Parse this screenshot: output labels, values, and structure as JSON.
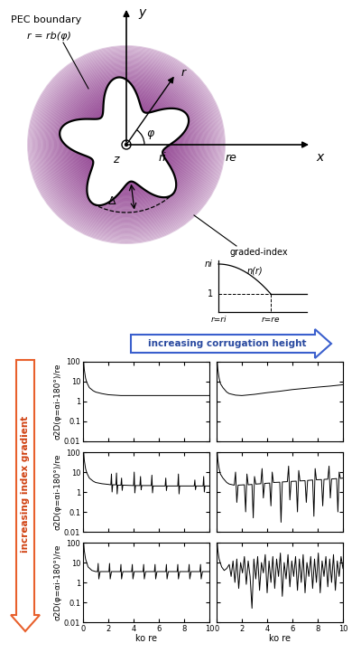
{
  "diagram": {
    "pec_label": "PEC boundary",
    "boundary_eq": "r = rb(φ)",
    "axis_y": "y",
    "axis_x": "x",
    "axis_z": "z",
    "radius": "r",
    "angle": "φ",
    "inner_radius": "ri",
    "outer_radius": "re",
    "corrugation": "Δ",
    "profile": {
      "title": "graded-index",
      "n_inner": "ni",
      "curve": "n(r)",
      "n_outer": "1",
      "x_inner": "r=ri",
      "x_outer": "r=re"
    }
  },
  "arrows": {
    "horizontal": "increasing corrugation height",
    "vertical": "increasing index gradient"
  },
  "chart_data": [
    {
      "type": "line",
      "color": "#000000",
      "log": "y",
      "tick_labels": "y",
      "ylabel": "σ2D(φ=αi-180°)/re",
      "xlim": [
        0,
        10
      ],
      "ylim": [
        0.01,
        100
      ],
      "xticks": [
        0,
        2,
        4,
        6,
        8,
        10
      ],
      "yticks": [
        0.01,
        0.1,
        1,
        10,
        100
      ],
      "x": [
        0.05,
        0.1,
        0.2,
        0.3,
        0.5,
        0.8,
        1,
        1.5,
        2,
        3,
        4,
        5,
        6,
        7,
        8,
        9,
        10
      ],
      "values": [
        100,
        40,
        15,
        9,
        5,
        3.5,
        3,
        2.5,
        2.2,
        2,
        2,
        2,
        2,
        2,
        2,
        2,
        2
      ]
    },
    {
      "type": "line",
      "color": "#000000",
      "log": "y",
      "tick_labels": false,
      "xlim": [
        0,
        10
      ],
      "ylim": [
        0.01,
        100
      ],
      "xticks": [
        0,
        2,
        4,
        6,
        8,
        10
      ],
      "yticks": [
        0.01,
        0.1,
        1,
        10,
        100
      ],
      "x": [
        0.05,
        0.1,
        0.2,
        0.3,
        0.5,
        0.8,
        1,
        1.5,
        2,
        3,
        4,
        5,
        6,
        7,
        8,
        9,
        10
      ],
      "values": [
        100,
        40,
        15,
        8,
        5,
        3,
        2.5,
        2.1,
        2,
        2.3,
        2.8,
        3.3,
        4,
        4.6,
        5.3,
        6,
        7
      ]
    },
    {
      "type": "line",
      "color": "#000000",
      "log": "y",
      "tick_labels": "y",
      "ylabel": "σ2D(φ=αi-180°)/re",
      "xlim": [
        0,
        10
      ],
      "ylim": [
        0.01,
        100
      ],
      "xticks": [
        0,
        2,
        4,
        6,
        8,
        10
      ],
      "yticks": [
        0.01,
        0.1,
        1,
        10,
        100
      ],
      "x": [
        0.05,
        0.1,
        0.2,
        0.3,
        0.5,
        0.8,
        1,
        1.5,
        2,
        2.2,
        2.25,
        2.3,
        2.35,
        2.6,
        2.65,
        2.7,
        2.75,
        3,
        3.05,
        3.1,
        3.15,
        4,
        4.05,
        4.1,
        4.15,
        4.5,
        4.55,
        4.6,
        4.65,
        5.4,
        5.45,
        5.5,
        5.55,
        6.5,
        6.55,
        6.6,
        6.65,
        7.5,
        7.55,
        7.6,
        7.65,
        8.8,
        8.85,
        8.9,
        8.95,
        9.5,
        9.55,
        9.6,
        9.65,
        10
      ],
      "values": [
        100,
        40,
        15,
        9,
        5,
        3.5,
        3,
        2.6,
        2.4,
        2.3,
        8,
        1,
        2.3,
        2.3,
        9,
        0.8,
        2.2,
        2.2,
        5,
        1.2,
        2.2,
        2.1,
        10,
        0.9,
        2.1,
        2.1,
        6,
        1.3,
        2.1,
        2.1,
        7,
        0.9,
        2,
        2,
        5,
        1.2,
        2,
        2,
        8,
        0.8,
        2,
        2,
        4,
        1.3,
        2,
        2,
        6,
        1,
        2,
        2
      ]
    },
    {
      "type": "line",
      "color": "#000000",
      "log": "y",
      "tick_labels": false,
      "xlim": [
        0,
        10
      ],
      "ylim": [
        0.01,
        100
      ],
      "xticks": [
        0,
        2,
        4,
        6,
        8,
        10
      ],
      "yticks": [
        0.01,
        0.1,
        1,
        10,
        100
      ],
      "x": [
        0.05,
        0.1,
        0.2,
        0.3,
        0.5,
        0.8,
        1,
        1.4,
        1.5,
        1.6,
        1.7,
        2.2,
        2.3,
        2.4,
        2.5,
        2.8,
        2.9,
        3,
        3.1,
        3.5,
        3.6,
        3.7,
        3.8,
        4.2,
        4.3,
        4.4,
        4.5,
        5,
        5.1,
        5.2,
        5.6,
        5.7,
        5.8,
        5.9,
        6.3,
        6.4,
        6.5,
        6.6,
        7,
        7.1,
        7.2,
        7.6,
        7.7,
        7.8,
        7.9,
        8.3,
        8.4,
        8.5,
        8.8,
        8.9,
        9,
        9.1,
        9.5,
        9.6,
        9.7,
        9.8,
        10
      ],
      "values": [
        100,
        40,
        15,
        8,
        5,
        3,
        2.5,
        2.2,
        10,
        0.3,
        2.2,
        2.3,
        0.1,
        8,
        2.3,
        2.4,
        0.05,
        6,
        2.5,
        2.6,
        15,
        0.5,
        2.7,
        2.8,
        0.2,
        10,
        3,
        3.1,
        0.03,
        3.2,
        3.3,
        20,
        0.4,
        3.4,
        3.5,
        0.1,
        12,
        3.6,
        3.7,
        0.3,
        3.8,
        4,
        0.06,
        15,
        4.1,
        4.2,
        0.2,
        4.3,
        4.4,
        20,
        0.5,
        4.5,
        4.7,
        0.1,
        10,
        4.8,
        5
      ]
    },
    {
      "type": "line",
      "color": "#000000",
      "log": "y",
      "ylabel": "σ2D(φ=αi-180°)/re",
      "xlabel": "ko re",
      "xlim": [
        0,
        10
      ],
      "ylim": [
        0.01,
        100
      ],
      "xticks": [
        0,
        2,
        4,
        6,
        8,
        10
      ],
      "yticks": [
        0.01,
        0.1,
        1,
        10,
        100
      ],
      "x": [
        0.05,
        0.1,
        0.2,
        0.4,
        0.7,
        1,
        1.15,
        1.2,
        1.25,
        1.35,
        2.05,
        2.1,
        2.15,
        2.25,
        2.95,
        3.0,
        3.05,
        3.15,
        3.85,
        3.9,
        3.95,
        4.05,
        4.75,
        4.8,
        4.85,
        4.95,
        5.65,
        5.7,
        5.75,
        5.85,
        6.55,
        6.6,
        6.65,
        6.75,
        7.45,
        7.5,
        7.55,
        7.65,
        8.35,
        8.4,
        8.45,
        8.55,
        9.25,
        9.3,
        9.35,
        9.45,
        10
      ],
      "values": [
        100,
        40,
        15,
        6,
        4,
        3.5,
        3.5,
        9,
        1.5,
        3.5,
        3.5,
        9,
        1.5,
        3.5,
        3.5,
        8,
        1.5,
        3.5,
        3.5,
        8,
        1.5,
        3.5,
        3.5,
        8,
        1.5,
        3.5,
        3.5,
        8,
        1.5,
        3.5,
        3.5,
        8,
        1.5,
        3.5,
        3.5,
        8,
        1.5,
        3.5,
        3.5,
        8,
        1.5,
        3.5,
        3.5,
        8,
        1.5,
        3.5,
        3.5
      ]
    },
    {
      "type": "line",
      "color": "#000000",
      "log": "y",
      "tick_labels": "x",
      "xlabel": "ko re",
      "xlim": [
        0,
        10
      ],
      "ylim": [
        0.01,
        100
      ],
      "xticks": [
        0,
        2,
        4,
        6,
        8,
        10
      ],
      "yticks": [
        0.01,
        0.1,
        1,
        10,
        100
      ],
      "x": [
        0.05,
        0.1,
        0.2,
        0.4,
        0.6,
        0.8,
        1.0,
        1.15,
        1.3,
        1.45,
        1.6,
        1.75,
        1.9,
        2.05,
        2.2,
        2.35,
        2.5,
        2.65,
        2.8,
        2.95,
        3.1,
        3.25,
        3.4,
        3.55,
        3.7,
        3.85,
        4.0,
        4.15,
        4.3,
        4.45,
        4.6,
        4.75,
        4.9,
        5.05,
        5.2,
        5.35,
        5.5,
        5.65,
        5.8,
        5.95,
        6.1,
        6.25,
        6.4,
        6.55,
        6.7,
        6.85,
        7.0,
        7.15,
        7.3,
        7.45,
        7.6,
        7.75,
        7.9,
        8.05,
        8.2,
        8.35,
        8.5,
        8.65,
        8.8,
        8.95,
        9.1,
        9.25,
        9.4,
        9.55,
        9.7,
        9.85,
        10.0
      ],
      "values": [
        100,
        40,
        15,
        6,
        4,
        5,
        8,
        2,
        12,
        1,
        15,
        0.5,
        10,
        3,
        20,
        0.8,
        12,
        2,
        0.05,
        15,
        1.5,
        20,
        0.4,
        10,
        3,
        25,
        0.3,
        12,
        1,
        20,
        0.5,
        15,
        2,
        30,
        0.2,
        10,
        1.5,
        25,
        0.6,
        12,
        2,
        20,
        0.4,
        15,
        1,
        25,
        0.3,
        10,
        2,
        20,
        0.5,
        15,
        1,
        30,
        0.3,
        12,
        2,
        20,
        0.6,
        15,
        1,
        25,
        0.4,
        12,
        2,
        20,
        5
      ]
    }
  ]
}
